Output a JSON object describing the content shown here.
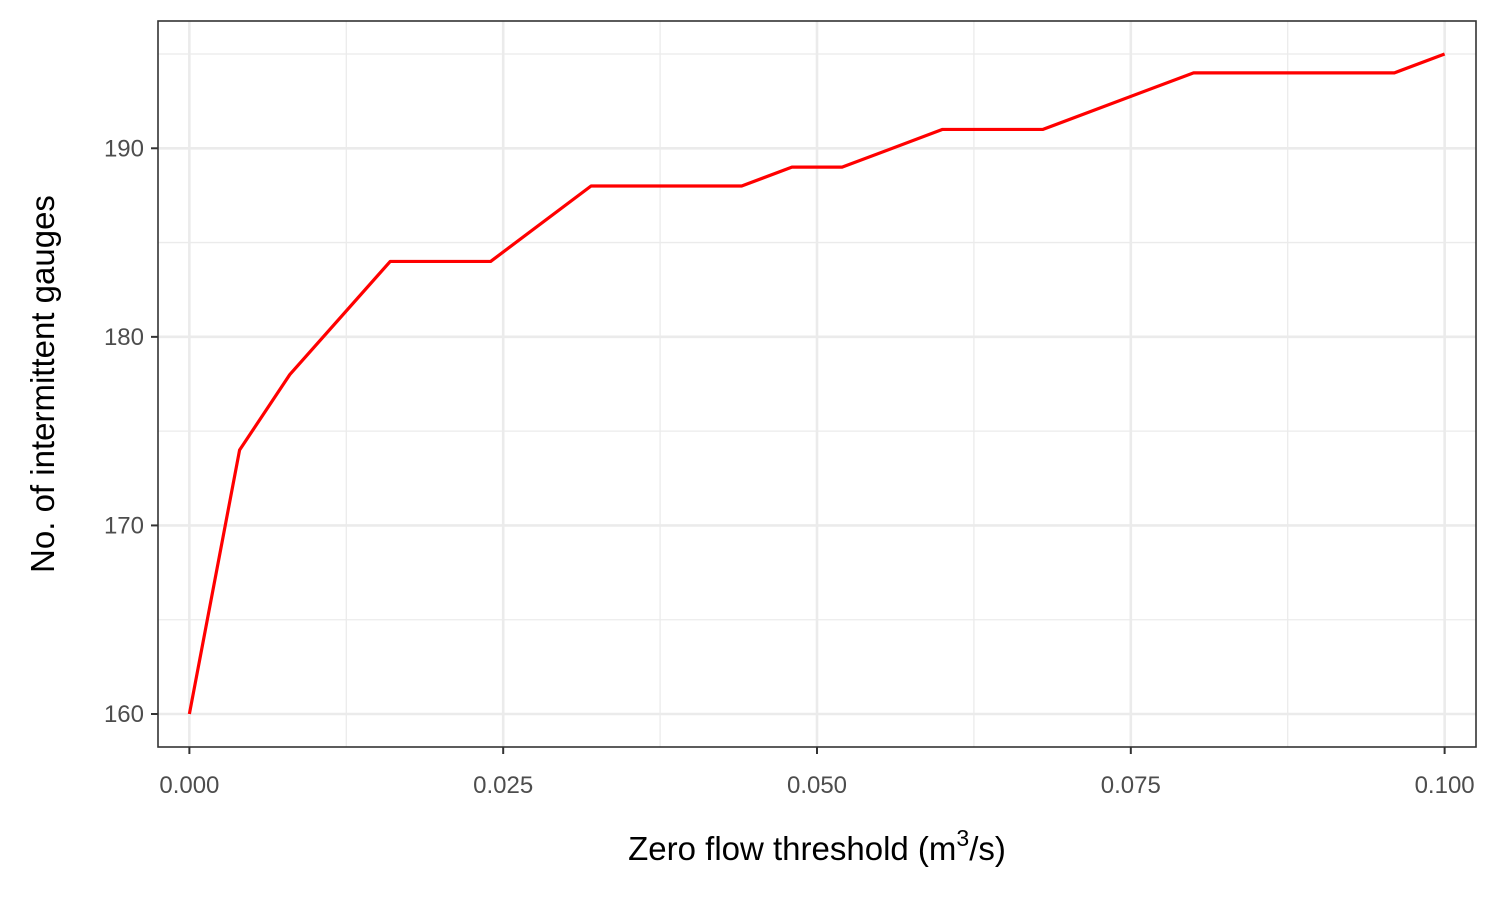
{
  "chart_data": {
    "type": "line",
    "title": "",
    "xlabel": "Zero flow threshold (m",
    "xlabel_superscript": "3",
    "xlabel_suffix": "/s)",
    "ylabel": "No. of intermittent gauges",
    "xlim": [
      -0.0025,
      0.1025
    ],
    "ylim": [
      158.25,
      196.75
    ],
    "x_ticks": [
      0.0,
      0.025,
      0.05,
      0.075,
      0.1
    ],
    "x_tick_labels": [
      "0.000",
      "0.025",
      "0.050",
      "0.075",
      "0.100"
    ],
    "x_minor_ticks": [
      0.0125,
      0.0375,
      0.0625,
      0.0875
    ],
    "y_ticks": [
      160,
      170,
      180,
      190
    ],
    "y_tick_labels": [
      "160",
      "170",
      "180",
      "190"
    ],
    "y_minor_ticks": [
      165,
      175,
      185,
      195
    ],
    "grid": true,
    "series": [
      {
        "color": "#ff0000",
        "x": [
          0.0,
          0.004,
          0.008,
          0.016,
          0.024,
          0.032,
          0.044,
          0.048,
          0.052,
          0.06,
          0.068,
          0.08,
          0.096,
          0.1
        ],
        "y": [
          160,
          174,
          178,
          184,
          184,
          188,
          188,
          189,
          189,
          191,
          191,
          194,
          194,
          195
        ]
      }
    ]
  }
}
